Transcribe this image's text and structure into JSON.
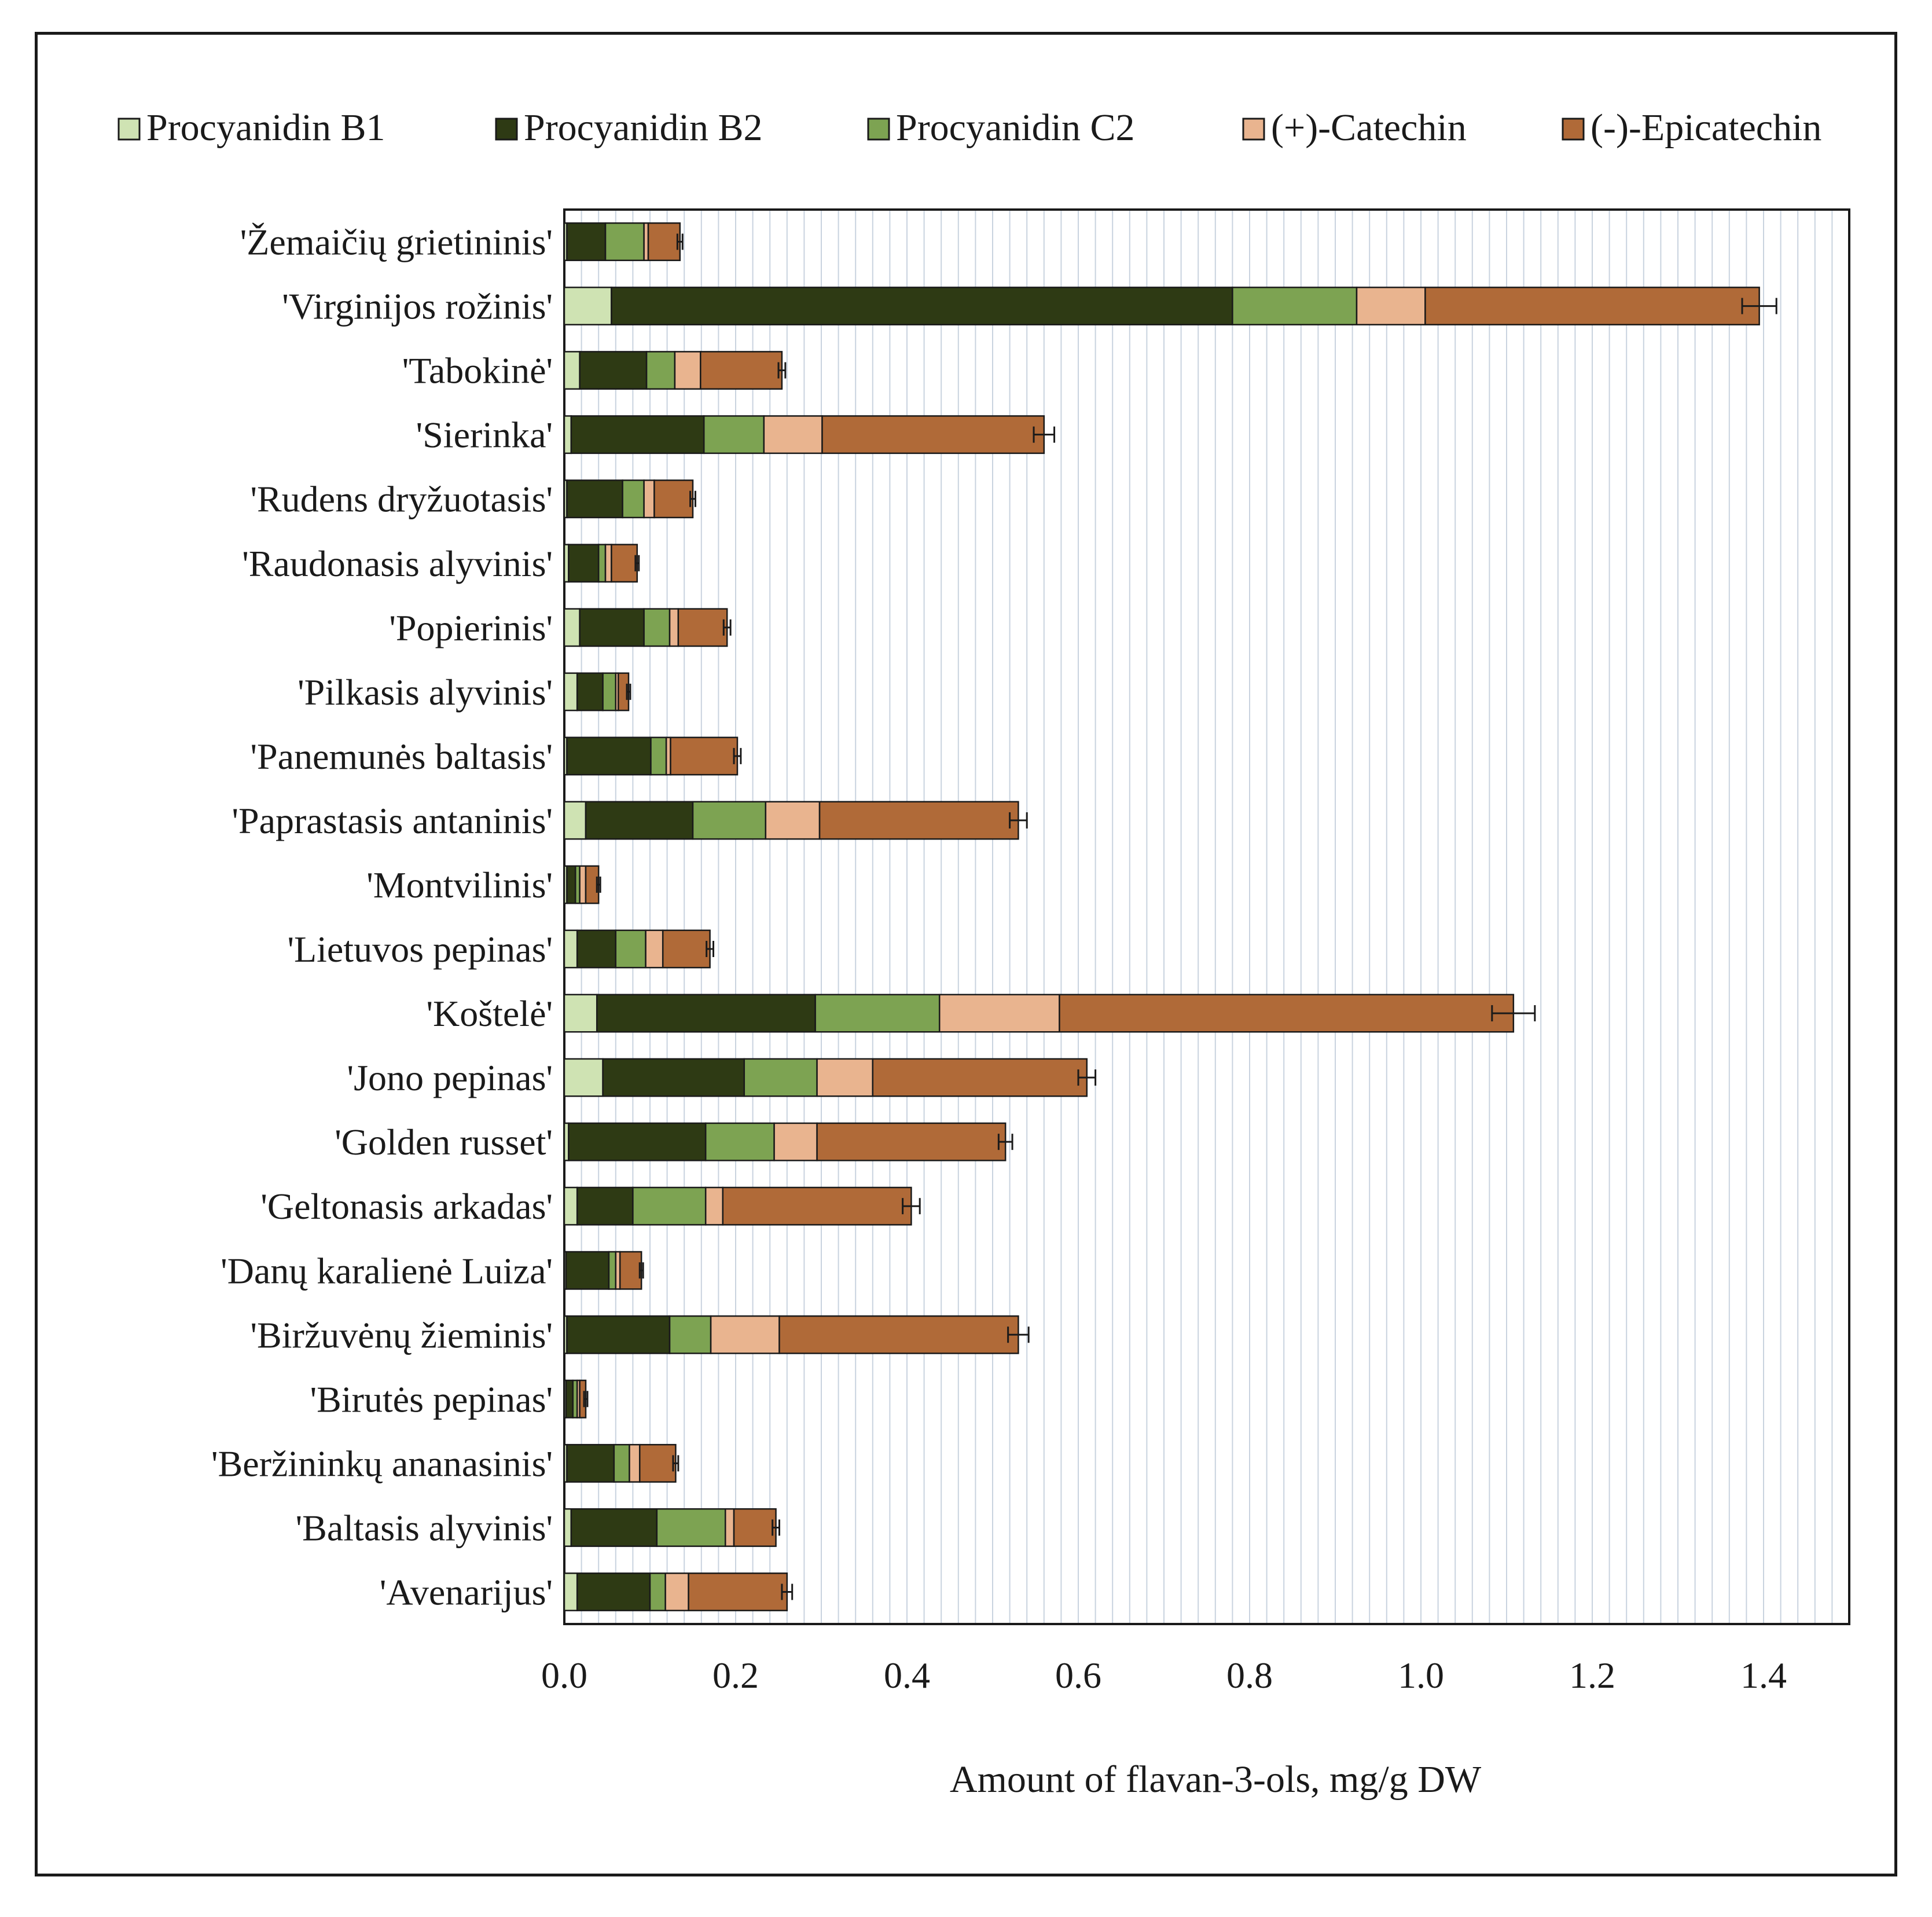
{
  "chart_data": {
    "type": "bar",
    "orientation": "horizontal",
    "stacked": true,
    "xlabel": "Amount of flavan-3-ols, mg/g DW",
    "ylabel": "",
    "xlim": [
      0,
      1.5
    ],
    "xticks": [
      0,
      0.2,
      0.4,
      0.6,
      0.8,
      1.0,
      1.2,
      1.4
    ],
    "xtick_labels": [
      "0.0",
      "0.2",
      "0.4",
      "0.6",
      "0.8",
      "1.0",
      "1.2",
      "1.4"
    ],
    "grid": "vertical minor",
    "legend_position": "top",
    "categories": [
      "'Žemaičių grietininis'",
      "'Virginijos rožinis'",
      "'Tabokinė'",
      "'Sierinka'",
      "'Rudens dryžuotasis'",
      "'Raudonasis alyvinis'",
      "'Popierinis'",
      "'Pilkasis alyvinis'",
      "'Panemunės baltasis'",
      "'Paprastasis antaninis'",
      "'Montvilinis'",
      "'Lietuvos pepinas'",
      "'Koštelė'",
      "'Jono pepinas'",
      "'Golden russet'",
      "'Geltonasis arkadas'",
      "'Danų karalienė Luiza'",
      "'Biržuvėnų žieminis'",
      "'Birutės pepinas'",
      "'Beržininkų ananasinis'",
      "'Baltasis alyvinis'",
      "'Avenarijus'"
    ],
    "series": [
      {
        "name": "Procyanidin B1",
        "color": "#cfe3b3",
        "values": [
          0.003,
          0.055,
          0.018,
          0.008,
          0.003,
          0.005,
          0.018,
          0.015,
          0.003,
          0.025,
          0.003,
          0.015,
          0.038,
          0.045,
          0.005,
          0.015,
          0.002,
          0.003,
          0.002,
          0.003,
          0.008,
          0.015
        ]
      },
      {
        "name": "Procyanidin B2",
        "color": "#2e3a14",
        "values": [
          0.045,
          0.725,
          0.078,
          0.155,
          0.065,
          0.035,
          0.075,
          0.03,
          0.098,
          0.125,
          0.01,
          0.045,
          0.255,
          0.165,
          0.16,
          0.065,
          0.05,
          0.12,
          0.008,
          0.055,
          0.1,
          0.085
        ]
      },
      {
        "name": "Procyanidin C2",
        "color": "#7da352",
        "values": [
          0.045,
          0.145,
          0.033,
          0.07,
          0.025,
          0.008,
          0.03,
          0.015,
          0.018,
          0.085,
          0.005,
          0.035,
          0.145,
          0.085,
          0.08,
          0.085,
          0.008,
          0.048,
          0.005,
          0.018,
          0.08,
          0.018
        ]
      },
      {
        "name": "(+)-Catechin",
        "color": "#e9b48f",
        "values": [
          0.005,
          0.08,
          0.03,
          0.068,
          0.012,
          0.007,
          0.01,
          0.003,
          0.005,
          0.063,
          0.007,
          0.02,
          0.14,
          0.065,
          0.05,
          0.02,
          0.005,
          0.08,
          0.003,
          0.012,
          0.01,
          0.027
        ]
      },
      {
        "name": "(-)-Epicatechin",
        "color": "#b06a38",
        "values": [
          0.037,
          0.39,
          0.095,
          0.259,
          0.045,
          0.03,
          0.057,
          0.012,
          0.078,
          0.232,
          0.015,
          0.055,
          0.53,
          0.25,
          0.22,
          0.22,
          0.025,
          0.279,
          0.007,
          0.042,
          0.049,
          0.115
        ]
      }
    ],
    "error_bars": [
      0.003,
      0.02,
      0.004,
      0.012,
      0.003,
      0.002,
      0.004,
      0.002,
      0.004,
      0.01,
      0.002,
      0.004,
      0.025,
      0.01,
      0.008,
      0.01,
      0.002,
      0.012,
      0.002,
      0.003,
      0.004,
      0.006
    ]
  }
}
